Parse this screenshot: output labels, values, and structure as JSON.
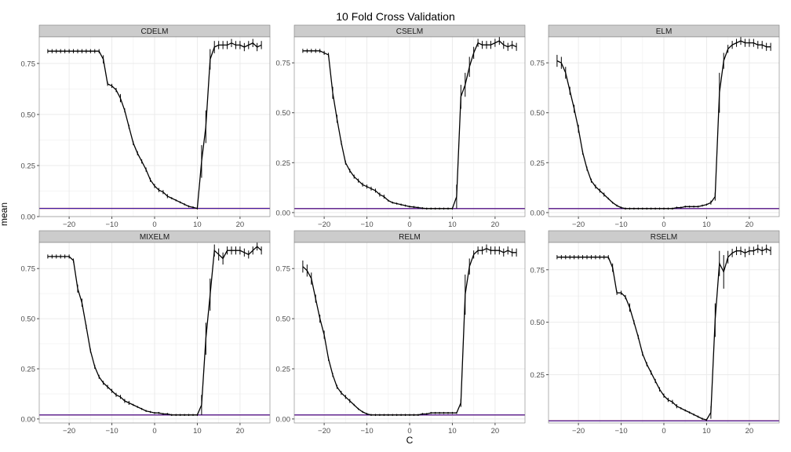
{
  "chart_data": {
    "type": "line",
    "title": "10 Fold Cross Validation",
    "xlabel": "C",
    "ylabel": "mean",
    "grid": true,
    "colors": {
      "strip_bg": "#cccccc",
      "panel_border": "#7f7f7f",
      "grid_major": "#ebebeb",
      "grid_minor": "#f5f5f5",
      "line": "#000000",
      "hline_blue": "#1c1cc8",
      "hline_red": "#c81c1c"
    },
    "xlim": [
      -27,
      27
    ],
    "x_ticks": [
      -20,
      -10,
      0,
      10,
      20
    ],
    "x_tick_labels": [
      "−20",
      "−10",
      "0",
      "10",
      "20"
    ],
    "panels": [
      {
        "name": "CDELM",
        "ylim": [
          0.0,
          0.88
        ],
        "y_ticks": [
          0.0,
          0.25,
          0.5,
          0.75
        ],
        "y_tick_labels": [
          "0.00",
          "0.25",
          "0.50",
          "0.75"
        ],
        "hline": 0.04,
        "x": [
          -25,
          -24,
          -23,
          -22,
          -21,
          -20,
          -19,
          -18,
          -17,
          -16,
          -15,
          -14,
          -13,
          -12,
          -11,
          -10,
          -9,
          -8,
          -7,
          -6,
          -5,
          -4,
          -3,
          -2,
          -1,
          0,
          1,
          2,
          3,
          4,
          5,
          6,
          7,
          8,
          9,
          10,
          11,
          12,
          13,
          14,
          15,
          16,
          17,
          18,
          19,
          20,
          21,
          22,
          23,
          24,
          25
        ],
        "y": [
          0.81,
          0.81,
          0.81,
          0.81,
          0.81,
          0.81,
          0.81,
          0.81,
          0.81,
          0.81,
          0.81,
          0.81,
          0.81,
          0.77,
          0.65,
          0.64,
          0.62,
          0.58,
          0.52,
          0.44,
          0.36,
          0.31,
          0.27,
          0.23,
          0.18,
          0.15,
          0.13,
          0.12,
          0.1,
          0.09,
          0.08,
          0.07,
          0.06,
          0.05,
          0.045,
          0.04,
          0.27,
          0.44,
          0.77,
          0.83,
          0.84,
          0.84,
          0.84,
          0.85,
          0.84,
          0.84,
          0.83,
          0.84,
          0.85,
          0.83,
          0.84
        ],
        "err": [
          0.01,
          0.01,
          0.01,
          0.01,
          0.01,
          0.01,
          0.01,
          0.01,
          0.01,
          0.01,
          0.01,
          0.01,
          0.01,
          0.02,
          0.01,
          0.01,
          0.01,
          0.02,
          0.01,
          0.01,
          0.01,
          0.01,
          0.01,
          0.01,
          0.01,
          0.01,
          0.01,
          0.01,
          0.01,
          0.005,
          0.005,
          0.005,
          0.005,
          0.005,
          0.005,
          0.005,
          0.08,
          0.08,
          0.05,
          0.03,
          0.02,
          0.02,
          0.02,
          0.02,
          0.02,
          0.02,
          0.02,
          0.02,
          0.02,
          0.02,
          0.02
        ]
      },
      {
        "name": "CSELM",
        "ylim": [
          -0.02,
          0.88
        ],
        "y_ticks": [
          0.0,
          0.25,
          0.5,
          0.75
        ],
        "y_tick_labels": [
          "0.00",
          "0.25",
          "0.50",
          "0.75"
        ],
        "hline": 0.02,
        "x": [
          -25,
          -24,
          -23,
          -22,
          -21,
          -20,
          -19,
          -18,
          -17,
          -16,
          -15,
          -14,
          -13,
          -12,
          -11,
          -10,
          -9,
          -8,
          -7,
          -6,
          -5,
          -4,
          -3,
          -2,
          -1,
          0,
          1,
          2,
          3,
          4,
          5,
          6,
          7,
          8,
          9,
          10,
          11,
          12,
          13,
          14,
          15,
          16,
          17,
          18,
          19,
          20,
          21,
          22,
          23,
          24,
          25
        ],
        "y": [
          0.81,
          0.81,
          0.81,
          0.81,
          0.81,
          0.8,
          0.79,
          0.6,
          0.47,
          0.35,
          0.25,
          0.21,
          0.18,
          0.16,
          0.14,
          0.13,
          0.12,
          0.11,
          0.09,
          0.08,
          0.06,
          0.05,
          0.045,
          0.04,
          0.035,
          0.03,
          0.028,
          0.025,
          0.022,
          0.02,
          0.02,
          0.02,
          0.02,
          0.02,
          0.02,
          0.02,
          0.08,
          0.58,
          0.64,
          0.73,
          0.8,
          0.85,
          0.84,
          0.84,
          0.84,
          0.85,
          0.86,
          0.84,
          0.83,
          0.84,
          0.83
        ],
        "err": [
          0.01,
          0.01,
          0.01,
          0.01,
          0.01,
          0.01,
          0.01,
          0.03,
          0.02,
          0.01,
          0.01,
          0.01,
          0.01,
          0.01,
          0.01,
          0.01,
          0.01,
          0.01,
          0.01,
          0.01,
          0.005,
          0.005,
          0.005,
          0.005,
          0.005,
          0.005,
          0.005,
          0.005,
          0.005,
          0.005,
          0.005,
          0.005,
          0.005,
          0.005,
          0.005,
          0.005,
          0.06,
          0.06,
          0.06,
          0.05,
          0.03,
          0.02,
          0.02,
          0.02,
          0.02,
          0.02,
          0.02,
          0.02,
          0.02,
          0.02,
          0.02
        ]
      },
      {
        "name": "ELM",
        "ylim": [
          -0.02,
          0.88
        ],
        "y_ticks": [
          0.0,
          0.25,
          0.5,
          0.75
        ],
        "y_tick_labels": [
          "0.00",
          "0.25",
          "0.50",
          "0.75"
        ],
        "hline": 0.02,
        "x": [
          -25,
          -24,
          -23,
          -22,
          -21,
          -20,
          -19,
          -18,
          -17,
          -16,
          -15,
          -14,
          -13,
          -12,
          -11,
          -10,
          -9,
          -8,
          -7,
          -6,
          -5,
          -4,
          -3,
          -2,
          -1,
          0,
          1,
          2,
          3,
          4,
          5,
          6,
          7,
          8,
          9,
          10,
          11,
          12,
          13,
          14,
          15,
          16,
          17,
          18,
          19,
          20,
          21,
          22,
          23,
          24,
          25
        ],
        "y": [
          0.76,
          0.75,
          0.7,
          0.61,
          0.52,
          0.42,
          0.3,
          0.22,
          0.16,
          0.13,
          0.11,
          0.09,
          0.07,
          0.05,
          0.035,
          0.025,
          0.02,
          0.02,
          0.02,
          0.02,
          0.02,
          0.02,
          0.02,
          0.02,
          0.02,
          0.02,
          0.02,
          0.02,
          0.025,
          0.025,
          0.03,
          0.03,
          0.03,
          0.03,
          0.035,
          0.04,
          0.05,
          0.08,
          0.6,
          0.76,
          0.82,
          0.84,
          0.85,
          0.86,
          0.85,
          0.85,
          0.85,
          0.84,
          0.84,
          0.83,
          0.83
        ],
        "err": [
          0.03,
          0.03,
          0.03,
          0.02,
          0.02,
          0.02,
          0.01,
          0.01,
          0.01,
          0.01,
          0.01,
          0.01,
          0.005,
          0.005,
          0.005,
          0.005,
          0.005,
          0.005,
          0.005,
          0.005,
          0.005,
          0.005,
          0.005,
          0.005,
          0.005,
          0.005,
          0.005,
          0.005,
          0.005,
          0.005,
          0.005,
          0.005,
          0.005,
          0.005,
          0.005,
          0.005,
          0.01,
          0.02,
          0.1,
          0.04,
          0.02,
          0.02,
          0.02,
          0.02,
          0.02,
          0.02,
          0.02,
          0.02,
          0.02,
          0.02,
          0.02
        ]
      },
      {
        "name": "MIXELM",
        "ylim": [
          -0.02,
          0.88
        ],
        "y_ticks": [
          0.0,
          0.25,
          0.5,
          0.75
        ],
        "y_tick_labels": [
          "0.00",
          "0.25",
          "0.50",
          "0.75"
        ],
        "hline": 0.02,
        "x": [
          -25,
          -24,
          -23,
          -22,
          -21,
          -20,
          -19,
          -18,
          -17,
          -16,
          -15,
          -14,
          -13,
          -12,
          -11,
          -10,
          -9,
          -8,
          -7,
          -6,
          -5,
          -4,
          -3,
          -2,
          -1,
          0,
          1,
          2,
          3,
          4,
          5,
          6,
          7,
          8,
          9,
          10,
          11,
          12,
          13,
          14,
          15,
          16,
          17,
          18,
          19,
          20,
          21,
          22,
          23,
          24,
          25
        ],
        "y": [
          0.81,
          0.81,
          0.81,
          0.81,
          0.81,
          0.81,
          0.79,
          0.65,
          0.58,
          0.46,
          0.34,
          0.26,
          0.21,
          0.18,
          0.16,
          0.14,
          0.12,
          0.11,
          0.09,
          0.08,
          0.07,
          0.06,
          0.05,
          0.04,
          0.035,
          0.03,
          0.03,
          0.025,
          0.025,
          0.02,
          0.02,
          0.02,
          0.02,
          0.02,
          0.02,
          0.02,
          0.07,
          0.4,
          0.62,
          0.84,
          0.82,
          0.8,
          0.84,
          0.84,
          0.84,
          0.84,
          0.83,
          0.82,
          0.84,
          0.86,
          0.84
        ],
        "err": [
          0.01,
          0.01,
          0.01,
          0.01,
          0.01,
          0.01,
          0.01,
          0.02,
          0.02,
          0.01,
          0.01,
          0.01,
          0.01,
          0.01,
          0.01,
          0.01,
          0.01,
          0.01,
          0.01,
          0.01,
          0.005,
          0.005,
          0.005,
          0.005,
          0.005,
          0.005,
          0.005,
          0.005,
          0.005,
          0.005,
          0.005,
          0.005,
          0.005,
          0.005,
          0.005,
          0.005,
          0.05,
          0.08,
          0.08,
          0.03,
          0.03,
          0.03,
          0.02,
          0.02,
          0.02,
          0.02,
          0.02,
          0.02,
          0.02,
          0.02,
          0.02
        ]
      },
      {
        "name": "RELM",
        "ylim": [
          -0.02,
          0.88
        ],
        "y_ticks": [
          0.0,
          0.25,
          0.5,
          0.75
        ],
        "y_tick_labels": [
          "0.00",
          "0.25",
          "0.50",
          "0.75"
        ],
        "hline": 0.02,
        "x": [
          -25,
          -24,
          -23,
          -22,
          -21,
          -20,
          -19,
          -18,
          -17,
          -16,
          -15,
          -14,
          -13,
          -12,
          -11,
          -10,
          -9,
          -8,
          -7,
          -6,
          -5,
          -4,
          -3,
          -2,
          -1,
          0,
          1,
          2,
          3,
          4,
          5,
          6,
          7,
          8,
          9,
          10,
          11,
          12,
          13,
          14,
          15,
          16,
          17,
          18,
          19,
          20,
          21,
          22,
          23,
          24,
          25
        ],
        "y": [
          0.76,
          0.74,
          0.7,
          0.6,
          0.5,
          0.42,
          0.3,
          0.22,
          0.16,
          0.13,
          0.11,
          0.09,
          0.07,
          0.05,
          0.035,
          0.025,
          0.02,
          0.02,
          0.02,
          0.02,
          0.02,
          0.02,
          0.02,
          0.02,
          0.02,
          0.02,
          0.02,
          0.02,
          0.025,
          0.025,
          0.03,
          0.03,
          0.03,
          0.03,
          0.03,
          0.03,
          0.03,
          0.08,
          0.62,
          0.76,
          0.82,
          0.84,
          0.84,
          0.85,
          0.84,
          0.84,
          0.84,
          0.83,
          0.84,
          0.83,
          0.83
        ],
        "err": [
          0.03,
          0.03,
          0.03,
          0.02,
          0.02,
          0.02,
          0.01,
          0.01,
          0.01,
          0.01,
          0.01,
          0.01,
          0.005,
          0.005,
          0.005,
          0.005,
          0.005,
          0.005,
          0.005,
          0.005,
          0.005,
          0.005,
          0.005,
          0.005,
          0.005,
          0.005,
          0.005,
          0.005,
          0.005,
          0.005,
          0.005,
          0.005,
          0.005,
          0.005,
          0.005,
          0.005,
          0.005,
          0.02,
          0.1,
          0.04,
          0.02,
          0.02,
          0.02,
          0.02,
          0.02,
          0.02,
          0.02,
          0.02,
          0.02,
          0.02,
          0.02
        ]
      },
      {
        "name": "RSELM",
        "ylim": [
          0.02,
          0.88
        ],
        "y_ticks": [
          0.25,
          0.5,
          0.75
        ],
        "y_tick_labels": [
          "0.25",
          "0.50",
          "0.75"
        ],
        "hline": 0.03,
        "x": [
          -25,
          -24,
          -23,
          -22,
          -21,
          -20,
          -19,
          -18,
          -17,
          -16,
          -15,
          -14,
          -13,
          -12,
          -11,
          -10,
          -9,
          -8,
          -7,
          -6,
          -5,
          -4,
          -3,
          -2,
          -1,
          0,
          1,
          2,
          3,
          4,
          5,
          6,
          7,
          8,
          9,
          10,
          11,
          12,
          13,
          14,
          15,
          16,
          17,
          18,
          19,
          20,
          21,
          22,
          23,
          24,
          25
        ],
        "y": [
          0.81,
          0.81,
          0.81,
          0.81,
          0.81,
          0.81,
          0.81,
          0.81,
          0.81,
          0.81,
          0.81,
          0.81,
          0.81,
          0.76,
          0.64,
          0.64,
          0.62,
          0.57,
          0.5,
          0.43,
          0.35,
          0.3,
          0.26,
          0.22,
          0.18,
          0.15,
          0.13,
          0.12,
          0.1,
          0.09,
          0.08,
          0.07,
          0.06,
          0.05,
          0.04,
          0.035,
          0.07,
          0.51,
          0.78,
          0.74,
          0.81,
          0.83,
          0.84,
          0.84,
          0.83,
          0.84,
          0.84,
          0.85,
          0.84,
          0.85,
          0.84
        ],
        "err": [
          0.01,
          0.01,
          0.01,
          0.01,
          0.01,
          0.01,
          0.01,
          0.01,
          0.01,
          0.01,
          0.01,
          0.01,
          0.01,
          0.02,
          0.01,
          0.01,
          0.01,
          0.02,
          0.01,
          0.01,
          0.01,
          0.01,
          0.01,
          0.01,
          0.01,
          0.01,
          0.01,
          0.01,
          0.01,
          0.005,
          0.005,
          0.005,
          0.005,
          0.005,
          0.005,
          0.005,
          0.03,
          0.08,
          0.06,
          0.08,
          0.03,
          0.02,
          0.02,
          0.02,
          0.02,
          0.02,
          0.02,
          0.02,
          0.02,
          0.02,
          0.02
        ]
      }
    ]
  }
}
